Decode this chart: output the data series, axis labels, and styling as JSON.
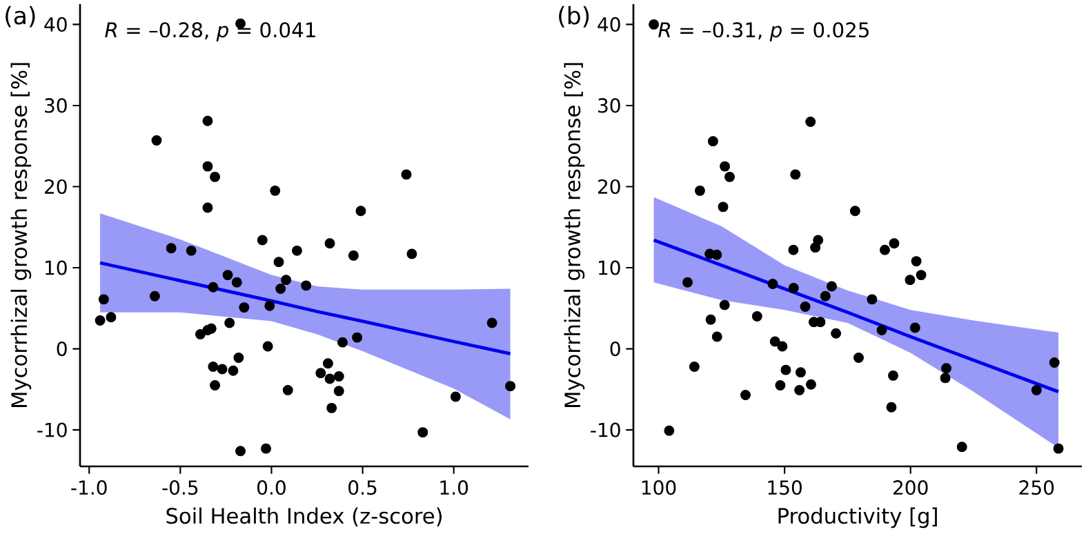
{
  "chart_data": [
    {
      "type": "scatter",
      "marker": "circle",
      "xlabel": "Soil Health Index (z-score)",
      "ylabel": "Mycorrhizal growth response [%]",
      "annotations": [
        "(a)",
        "*R* = –0.28, *p* = 0.041"
      ],
      "xlim": [
        -1.05,
        1.41
      ],
      "ylim": [
        -14.5,
        42.5
      ],
      "xticks": [
        {
          "value": -1.0,
          "label": "-1.0"
        },
        {
          "value": -0.5,
          "label": "-0.5"
        },
        {
          "value": 0.0,
          "label": "0.0"
        },
        {
          "value": 0.5,
          "label": "0.5"
        },
        {
          "value": 1.0,
          "label": "1.0"
        }
      ],
      "yticks": [
        -10,
        0,
        10,
        20,
        30,
        40
      ],
      "series": [
        {
          "color": "#000000",
          "x": [
            -0.17,
            -0.35,
            -0.63,
            -0.35,
            -0.31,
            -0.35,
            0.02,
            0.74,
            0.49,
            -0.05,
            0.32,
            -0.55,
            -0.44,
            0.14,
            0.45,
            0.77,
            0.04,
            -0.24,
            -0.19,
            0.08,
            -0.32,
            0.05,
            0.19,
            -0.92,
            -0.64,
            -0.15,
            -0.01,
            -0.94,
            -0.88,
            1.21,
            -0.23,
            -0.39,
            -0.35,
            -0.33,
            0.39,
            0.47,
            -0.02,
            -0.18,
            0.31,
            -0.32,
            -0.27,
            -0.21,
            0.27,
            0.37,
            0.32,
            -0.31,
            0.09,
            0.37,
            1.31,
            1.01,
            0.33,
            0.83,
            -0.17,
            -0.03
          ],
          "values": [
            40.1,
            28.1,
            25.7,
            22.5,
            21.2,
            17.4,
            19.5,
            21.5,
            17.0,
            13.4,
            13.0,
            12.4,
            12.1,
            12.1,
            11.5,
            11.7,
            10.7,
            9.1,
            8.2,
            8.5,
            7.6,
            7.4,
            7.8,
            6.1,
            6.5,
            5.1,
            5.3,
            3.5,
            3.9,
            3.2,
            3.2,
            1.8,
            2.3,
            2.5,
            0.8,
            1.4,
            0.3,
            -1.1,
            -1.8,
            -2.2,
            -2.5,
            -2.7,
            -3.0,
            -3.4,
            -3.7,
            -4.5,
            -5.1,
            -5.2,
            -4.6,
            -5.9,
            -7.3,
            -10.3,
            -12.6,
            -12.3
          ]
        },
        {
          "type": "line",
          "marker": "none",
          "color": "#0000ee",
          "x": [
            -0.94,
            -0.5,
            0,
            0.25,
            0.5,
            1.0,
            1.31
          ],
          "values": [
            10.6,
            8.4,
            5.9,
            4.6,
            3.4,
            0.9,
            -0.6
          ],
          "upper": [
            16.7,
            13.5,
            9.1,
            7.7,
            7.3,
            7.3,
            7.4
          ],
          "lower": [
            4.5,
            4.5,
            3.4,
            1.8,
            -0.3,
            -4.9,
            -8.7
          ]
        }
      ]
    },
    {
      "type": "scatter",
      "marker": "circle",
      "xlabel": "Productivity [g]",
      "ylabel": "Mycorrhizal growth response [%]",
      "annotations": [
        "(b)",
        "*R* = –0.31, *p* = 0.025"
      ],
      "xlim": [
        90,
        268
      ],
      "ylim": [
        -14.5,
        42.5
      ],
      "xticks": [
        100,
        150,
        200,
        250
      ],
      "yticks": [
        -10,
        0,
        10,
        20,
        30,
        40
      ],
      "series": [
        {
          "color": "#000000",
          "x": [
            98.1,
            160.3,
            121.6,
            126.3,
            128.2,
            154.3,
            116.4,
            125.6,
            178.0,
            163.3,
            162.2,
            193.5,
            189.8,
            153.5,
            120.3,
            123.1,
            202.3,
            204.2,
            199.8,
            111.5,
            145.3,
            153.6,
            168.7,
            166.2,
            184.7,
            158.2,
            126.2,
            161.6,
            164.2,
            139.1,
            120.7,
            188.6,
            201.8,
            170.4,
            123.2,
            146.2,
            149.1,
            179.4,
            114.2,
            150.5,
            156.4,
            214.2,
            213.8,
            193.1,
            148.3,
            160.5,
            155.9,
            134.5,
            250.0,
            257.1,
            104.2,
            220.4,
            258.7,
            192.4
          ],
          "values": [
            40.0,
            28.0,
            25.6,
            22.5,
            21.2,
            21.5,
            19.5,
            17.5,
            17.0,
            13.4,
            12.5,
            13.0,
            12.2,
            12.2,
            11.7,
            11.6,
            10.8,
            9.1,
            8.5,
            8.2,
            8.0,
            7.5,
            7.7,
            6.5,
            6.1,
            5.2,
            5.4,
            3.3,
            3.3,
            4.0,
            3.6,
            2.3,
            2.6,
            1.9,
            1.5,
            0.9,
            0.3,
            -1.1,
            -2.2,
            -2.6,
            -2.9,
            -2.4,
            -3.6,
            -3.3,
            -4.5,
            -4.4,
            -5.1,
            -5.7,
            -5.1,
            -1.7,
            -10.1,
            -12.1,
            -12.3,
            -7.2
          ]
        },
        {
          "type": "line",
          "marker": "none",
          "color": "#0000ee",
          "x": [
            98.1,
            125,
            150,
            175,
            200,
            225,
            258.7
          ],
          "values": [
            13.4,
            10.3,
            7.4,
            4.5,
            1.5,
            -1.4,
            -5.3
          ],
          "upper": [
            18.7,
            15.1,
            10.3,
            7.2,
            4.8,
            3.5,
            2.0
          ],
          "lower": [
            8.2,
            6.0,
            4.8,
            3.2,
            -0.5,
            -5.3,
            -12.2
          ]
        }
      ]
    }
  ]
}
